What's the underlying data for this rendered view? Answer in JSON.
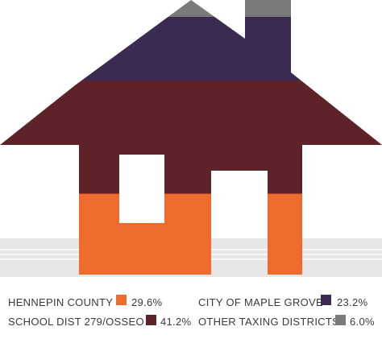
{
  "colors": {
    "hennepin": "#ee6b2d",
    "school": "#5e2328",
    "city": "#3a2b52",
    "other": "#7a7a7a",
    "ground": "#e6e6e6",
    "ground_lines": "#ffffff"
  },
  "chart_data": {
    "type": "area",
    "title": "",
    "series": [
      {
        "name": "HENNEPIN COUNTY",
        "value": 29.6,
        "label": "29.6%",
        "color_key": "hennepin"
      },
      {
        "name": "SCHOOL DIST 279/OSSEO",
        "value": 41.2,
        "label": "41.2%",
        "color_key": "school"
      },
      {
        "name": "CITY OF MAPLE GROVE",
        "value": 23.2,
        "label": "23.2%",
        "color_key": "city"
      },
      {
        "name": "OTHER TAXING DISTRICTS",
        "value": 6.0,
        "label": "6.0%",
        "color_key": "other"
      }
    ],
    "stack_order_bottom_to_top": [
      "HENNEPIN COUNTY",
      "SCHOOL DIST 279/OSSEO",
      "CITY OF MAPLE GROVE",
      "OTHER TAXING DISTRICTS"
    ],
    "legend_position": "bottom"
  }
}
